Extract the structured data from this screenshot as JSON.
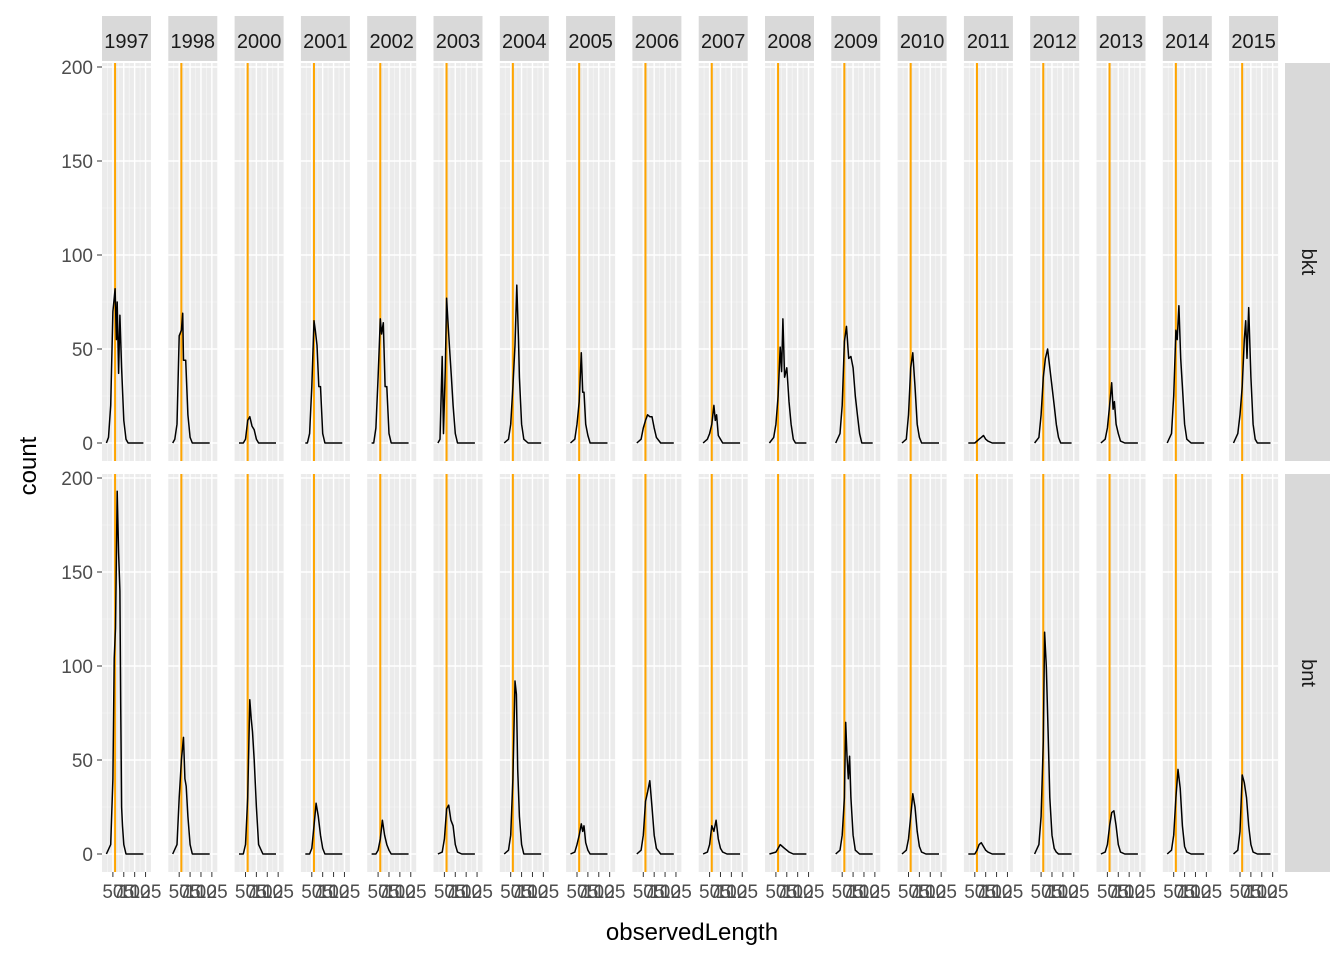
{
  "chart_data": {
    "type": "line",
    "facet_layout": "grid",
    "xlabel": "observedLength",
    "ylabel": "count",
    "ylim": [
      0,
      200
    ],
    "y_ticks": [
      0,
      50,
      100,
      150,
      200
    ],
    "x_ticks": [
      "50",
      "75",
      "100",
      "125"
    ],
    "reference_line_color": "#ffa500",
    "reference_line_x": 55,
    "line_color": "#000000",
    "panel_background": "#ebebeb",
    "strip_background": "#d9d9d9",
    "grid": true,
    "legend": "none",
    "columns": [
      "1997",
      "1998",
      "2000",
      "2001",
      "2002",
      "2003",
      "2004",
      "2005",
      "2006",
      "2007",
      "2008",
      "2009",
      "2010",
      "2011",
      "2012",
      "2013",
      "2014",
      "2015"
    ],
    "rows": [
      "bkt",
      "bnt"
    ],
    "series": [
      {
        "row": "bkt",
        "col": "1997",
        "x": [
          35,
          40,
          45,
          50,
          55,
          58,
          60,
          63,
          66,
          70,
          75,
          80,
          85,
          90,
          100,
          120
        ],
        "y": [
          0,
          3,
          20,
          70,
          82,
          55,
          75,
          37,
          68,
          40,
          12,
          2,
          0,
          0,
          0,
          0
        ]
      },
      {
        "row": "bkt",
        "col": "1998",
        "x": [
          35,
          40,
          45,
          50,
          55,
          58,
          60,
          65,
          70,
          75,
          80,
          90,
          120
        ],
        "y": [
          0,
          2,
          10,
          57,
          60,
          69,
          44,
          44,
          15,
          3,
          0,
          0,
          0
        ]
      },
      {
        "row": "bkt",
        "col": "2000",
        "x": [
          35,
          45,
          50,
          55,
          60,
          65,
          70,
          75,
          80,
          90,
          120
        ],
        "y": [
          0,
          0,
          2,
          12,
          14,
          9,
          7,
          2,
          0,
          0,
          0
        ]
      },
      {
        "row": "bkt",
        "col": "2001",
        "x": [
          35,
          40,
          45,
          50,
          55,
          58,
          62,
          66,
          70,
          75,
          80,
          90,
          120
        ],
        "y": [
          0,
          0,
          5,
          30,
          65,
          60,
          52,
          30,
          30,
          5,
          0,
          0,
          0
        ]
      },
      {
        "row": "bkt",
        "col": "2002",
        "x": [
          35,
          40,
          45,
          50,
          55,
          58,
          62,
          66,
          70,
          75,
          80,
          90,
          120
        ],
        "y": [
          0,
          0,
          8,
          35,
          66,
          58,
          64,
          30,
          30,
          5,
          0,
          0,
          0
        ]
      },
      {
        "row": "bkt",
        "col": "2003",
        "x": [
          35,
          40,
          45,
          48,
          52,
          55,
          58,
          62,
          66,
          70,
          75,
          80,
          90,
          120
        ],
        "y": [
          0,
          2,
          46,
          5,
          40,
          77,
          65,
          50,
          35,
          20,
          5,
          0,
          0,
          0
        ]
      },
      {
        "row": "bkt",
        "col": "2004",
        "x": [
          35,
          45,
          50,
          55,
          60,
          64,
          68,
          70,
          75,
          80,
          90,
          120
        ],
        "y": [
          0,
          2,
          10,
          30,
          52,
          84,
          55,
          35,
          10,
          2,
          0,
          0
        ]
      },
      {
        "row": "bkt",
        "col": "2005",
        "x": [
          35,
          45,
          50,
          55,
          60,
          63,
          66,
          70,
          75,
          80,
          90,
          120
        ],
        "y": [
          0,
          2,
          10,
          22,
          48,
          27,
          27,
          10,
          4,
          0,
          0,
          0
        ]
      },
      {
        "row": "bkt",
        "col": "2006",
        "x": [
          35,
          45,
          50,
          55,
          60,
          65,
          70,
          75,
          80,
          90,
          120
        ],
        "y": [
          0,
          2,
          8,
          12,
          15,
          14,
          14,
          8,
          3,
          0,
          0
        ]
      },
      {
        "row": "bkt",
        "col": "2007",
        "x": [
          35,
          45,
          50,
          55,
          60,
          63,
          66,
          70,
          75,
          80,
          90,
          120
        ],
        "y": [
          0,
          2,
          5,
          10,
          20,
          12,
          15,
          4,
          2,
          0,
          0,
          0
        ]
      },
      {
        "row": "bkt",
        "col": "2008",
        "x": [
          35,
          45,
          50,
          55,
          60,
          63,
          66,
          70,
          75,
          80,
          85,
          90,
          95,
          120
        ],
        "y": [
          0,
          3,
          10,
          25,
          51,
          38,
          66,
          35,
          40,
          22,
          10,
          2,
          0,
          0
        ]
      },
      {
        "row": "bkt",
        "col": "2009",
        "x": [
          35,
          45,
          50,
          55,
          60,
          65,
          70,
          75,
          80,
          85,
          90,
          95,
          120
        ],
        "y": [
          0,
          5,
          20,
          54,
          62,
          45,
          46,
          40,
          25,
          15,
          5,
          0,
          0
        ]
      },
      {
        "row": "bkt",
        "col": "2010",
        "x": [
          35,
          45,
          50,
          55,
          60,
          65,
          70,
          75,
          80,
          90,
          120
        ],
        "y": [
          0,
          2,
          15,
          40,
          48,
          30,
          10,
          3,
          0,
          0,
          0
        ]
      },
      {
        "row": "bkt",
        "col": "2011",
        "x": [
          35,
          50,
          55,
          60,
          65,
          70,
          75,
          80,
          90,
          120
        ],
        "y": [
          0,
          0,
          1,
          2,
          3,
          4,
          2,
          1,
          0,
          0
        ]
      },
      {
        "row": "bkt",
        "col": "2012",
        "x": [
          35,
          45,
          50,
          55,
          60,
          65,
          70,
          75,
          80,
          85,
          90,
          95,
          120
        ],
        "y": [
          0,
          3,
          15,
          35,
          45,
          50,
          40,
          30,
          20,
          10,
          3,
          0,
          0
        ]
      },
      {
        "row": "bkt",
        "col": "2013",
        "x": [
          35,
          45,
          50,
          55,
          60,
          63,
          66,
          70,
          75,
          80,
          90,
          120
        ],
        "y": [
          0,
          2,
          8,
          20,
          32,
          18,
          22,
          10,
          5,
          1,
          0,
          0
        ]
      },
      {
        "row": "bkt",
        "col": "2014",
        "x": [
          35,
          45,
          50,
          55,
          58,
          62,
          66,
          70,
          75,
          80,
          90,
          120
        ],
        "y": [
          0,
          5,
          25,
          60,
          55,
          73,
          45,
          30,
          10,
          2,
          0,
          0
        ]
      },
      {
        "row": "bkt",
        "col": "2015",
        "x": [
          35,
          45,
          50,
          55,
          60,
          63,
          66,
          70,
          75,
          80,
          85,
          90,
          120
        ],
        "y": [
          0,
          5,
          15,
          30,
          55,
          65,
          45,
          72,
          35,
          10,
          2,
          0,
          0
        ]
      },
      {
        "row": "bnt",
        "col": "1997",
        "x": [
          35,
          45,
          50,
          53,
          56,
          60,
          63,
          66,
          68,
          70,
          72,
          75,
          80,
          90,
          120
        ],
        "y": [
          0,
          5,
          40,
          104,
          120,
          193,
          160,
          140,
          80,
          25,
          15,
          5,
          0,
          0,
          0
        ]
      },
      {
        "row": "bnt",
        "col": "1998",
        "x": [
          35,
          45,
          50,
          55,
          60,
          63,
          66,
          70,
          75,
          80,
          90,
          120
        ],
        "y": [
          0,
          5,
          30,
          50,
          62,
          40,
          36,
          20,
          5,
          0,
          0,
          0
        ]
      },
      {
        "row": "bnt",
        "col": "2000",
        "x": [
          35,
          45,
          50,
          55,
          60,
          63,
          66,
          70,
          75,
          80,
          90,
          120
        ],
        "y": [
          0,
          0,
          5,
          30,
          82,
          72,
          65,
          50,
          25,
          5,
          0,
          0
        ]
      },
      {
        "row": "bnt",
        "col": "2001",
        "x": [
          35,
          45,
          50,
          55,
          60,
          65,
          70,
          75,
          80,
          90,
          120
        ],
        "y": [
          0,
          0,
          3,
          15,
          27,
          20,
          10,
          3,
          0,
          0,
          0
        ]
      },
      {
        "row": "bnt",
        "col": "2002",
        "x": [
          35,
          45,
          50,
          55,
          60,
          65,
          70,
          75,
          80,
          90,
          120
        ],
        "y": [
          0,
          0,
          2,
          8,
          18,
          10,
          5,
          2,
          0,
          0,
          0
        ]
      },
      {
        "row": "bnt",
        "col": "2003",
        "x": [
          35,
          45,
          50,
          55,
          60,
          65,
          70,
          75,
          80,
          90,
          120
        ],
        "y": [
          0,
          1,
          8,
          24,
          26,
          18,
          15,
          5,
          1,
          0,
          0
        ]
      },
      {
        "row": "bnt",
        "col": "2004",
        "x": [
          35,
          45,
          50,
          55,
          60,
          63,
          66,
          70,
          75,
          80,
          90,
          120
        ],
        "y": [
          0,
          2,
          10,
          40,
          92,
          85,
          45,
          20,
          5,
          0,
          0,
          0
        ]
      },
      {
        "row": "bnt",
        "col": "2005",
        "x": [
          35,
          45,
          50,
          55,
          60,
          63,
          66,
          70,
          75,
          80,
          90,
          120
        ],
        "y": [
          0,
          1,
          5,
          10,
          16,
          12,
          15,
          6,
          2,
          0,
          0,
          0
        ]
      },
      {
        "row": "bnt",
        "col": "2006",
        "x": [
          35,
          45,
          50,
          55,
          60,
          65,
          70,
          75,
          80,
          90,
          120
        ],
        "y": [
          0,
          2,
          10,
          28,
          33,
          39,
          25,
          10,
          3,
          0,
          0
        ]
      },
      {
        "row": "bnt",
        "col": "2007",
        "x": [
          35,
          45,
          50,
          55,
          60,
          65,
          70,
          75,
          80,
          90,
          120
        ],
        "y": [
          0,
          1,
          5,
          15,
          12,
          18,
          8,
          3,
          1,
          0,
          0
        ]
      },
      {
        "row": "bnt",
        "col": "2008",
        "x": [
          35,
          50,
          55,
          60,
          65,
          70,
          75,
          80,
          90,
          120
        ],
        "y": [
          0,
          1,
          3,
          5,
          4,
          3,
          2,
          1,
          0,
          0
        ]
      },
      {
        "row": "bnt",
        "col": "2009",
        "x": [
          35,
          45,
          50,
          55,
          58,
          61,
          64,
          67,
          70,
          75,
          80,
          90,
          120
        ],
        "y": [
          0,
          2,
          10,
          30,
          70,
          52,
          40,
          52,
          30,
          10,
          2,
          0,
          0
        ]
      },
      {
        "row": "bnt",
        "col": "2010",
        "x": [
          35,
          45,
          50,
          55,
          60,
          65,
          70,
          75,
          80,
          90,
          120
        ],
        "y": [
          0,
          2,
          8,
          20,
          32,
          25,
          12,
          4,
          1,
          0,
          0
        ]
      },
      {
        "row": "bnt",
        "col": "2011",
        "x": [
          35,
          50,
          55,
          60,
          65,
          70,
          75,
          80,
          90,
          120
        ],
        "y": [
          0,
          0,
          2,
          5,
          6,
          4,
          2,
          1,
          0,
          0
        ]
      },
      {
        "row": "bnt",
        "col": "2012",
        "x": [
          35,
          45,
          50,
          55,
          58,
          62,
          66,
          70,
          75,
          80,
          85,
          90,
          120
        ],
        "y": [
          0,
          5,
          20,
          60,
          118,
          100,
          65,
          30,
          10,
          3,
          1,
          0,
          0
        ]
      },
      {
        "row": "bnt",
        "col": "2013",
        "x": [
          35,
          45,
          50,
          55,
          60,
          65,
          70,
          75,
          80,
          90,
          120
        ],
        "y": [
          0,
          1,
          5,
          15,
          22,
          23,
          15,
          5,
          1,
          0,
          0
        ]
      },
      {
        "row": "bnt",
        "col": "2014",
        "x": [
          35,
          45,
          50,
          55,
          60,
          65,
          70,
          75,
          80,
          90,
          120
        ],
        "y": [
          0,
          2,
          10,
          30,
          45,
          35,
          15,
          4,
          1,
          0,
          0
        ]
      },
      {
        "row": "bnt",
        "col": "2015",
        "x": [
          35,
          45,
          50,
          55,
          60,
          65,
          70,
          75,
          80,
          90,
          120
        ],
        "y": [
          0,
          2,
          12,
          42,
          38,
          30,
          15,
          5,
          1,
          0,
          0
        ]
      }
    ]
  }
}
